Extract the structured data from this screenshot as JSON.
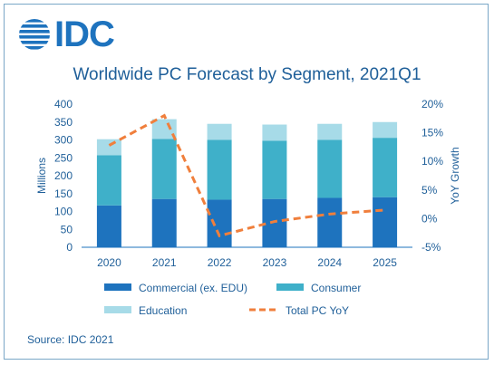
{
  "logo": {
    "text": "IDC",
    "icon": "idc-globe-icon"
  },
  "source": "Source: IDC 2021",
  "chart_data": {
    "type": "bar",
    "stacked": true,
    "title": "Worldwide PC Forecast by Segment, 2021Q1",
    "categories": [
      "2020",
      "2021",
      "2022",
      "2023",
      "2024",
      "2025"
    ],
    "ylabel": "Millions",
    "y2label": "YoY Growth",
    "ylim": [
      0,
      400
    ],
    "yticks": [
      0,
      50,
      100,
      150,
      200,
      250,
      300,
      350,
      400
    ],
    "y2lim": [
      -5,
      20
    ],
    "y2ticks": [
      -5,
      0,
      5,
      10,
      15,
      20
    ],
    "y2ticklabels": [
      "-5%",
      "0%",
      "5%",
      "10%",
      "15%",
      "20%"
    ],
    "grid": false,
    "legend_position": "bottom",
    "series": [
      {
        "name": "Commercial (ex. EDU)",
        "color": "#1e73be",
        "values": [
          117,
          135,
          133,
          135,
          138,
          140
        ]
      },
      {
        "name": "Consumer",
        "color": "#3fb0c9",
        "values": [
          140,
          168,
          167,
          163,
          162,
          166
        ]
      },
      {
        "name": "Education",
        "color": "#a7dbe8",
        "values": [
          45,
          55,
          45,
          45,
          45,
          44
        ]
      }
    ],
    "line_series": {
      "name": "Total PC YoY",
      "color": "#f07f3c",
      "axis": "secondary",
      "values": [
        12.8,
        18,
        -3,
        -0.5,
        0.8,
        1.5
      ]
    }
  }
}
